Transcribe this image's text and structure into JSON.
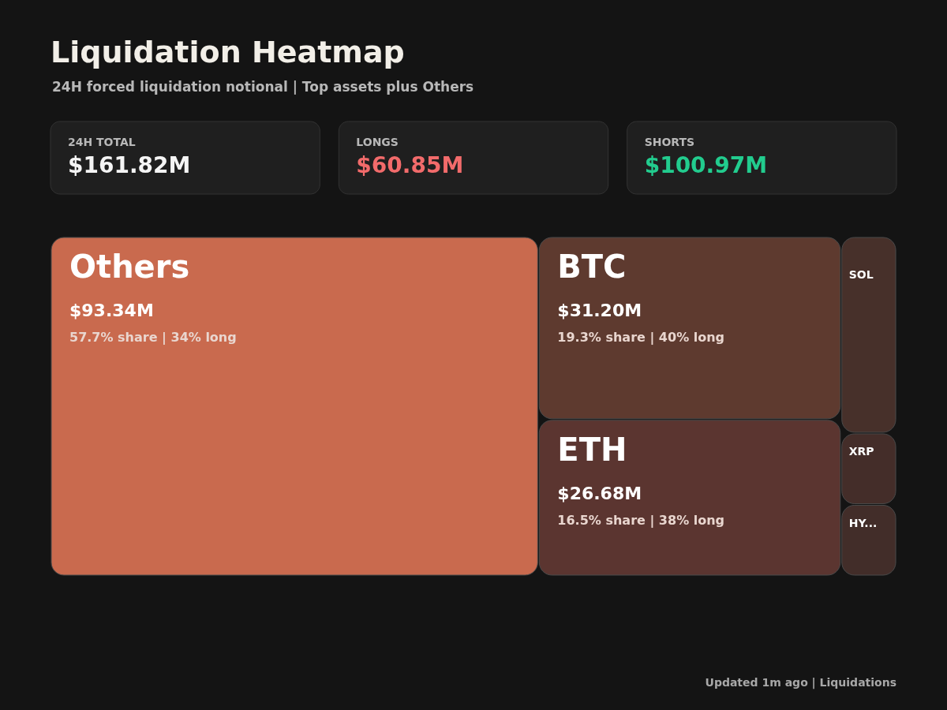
{
  "chart_data": {
    "type": "other",
    "title": "Liquidation Heatmap",
    "subtitle": "24H forced liquidation notional | Top assets plus Others",
    "categories": [
      "Others",
      "BTC",
      "ETH",
      "SOL",
      "XRP",
      "HY..."
    ],
    "values": [
      93.34,
      31.2,
      26.68,
      null,
      null,
      null
    ],
    "value_labels": [
      "$93.34M",
      "$31.20M",
      "$26.68M",
      null,
      null,
      null
    ],
    "colors": [
      "#c96a4e",
      "#5e3a2f",
      "#5b3530",
      "#47302a",
      "#442d29",
      "#422d29"
    ],
    "annotations": [
      "24H TOTAL",
      "$161.82M",
      "LONGS",
      "$60.85M",
      "SHORTS",
      "$100.97M",
      {
        "text": "57.7% share | 34% long",
        "x": "Others"
      },
      {
        "text": "19.3% share | 40% long",
        "x": "BTC"
      },
      {
        "text": "16.5% share | 38% long",
        "x": "ETH"
      },
      "Updated 1m ago | Liquidations"
    ]
  }
}
